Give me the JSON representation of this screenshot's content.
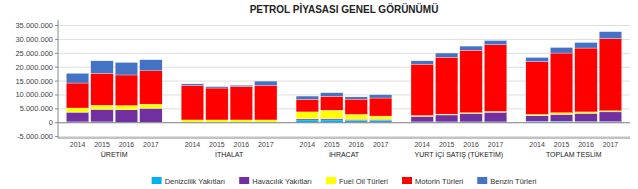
{
  "chart_data": {
    "type": "bar",
    "stacked": true,
    "grid": true,
    "legend": "bottom",
    "title": "PETROL PİYASASI GENEL GÖRÜNÜMÜ",
    "groups": [
      "ÜRETİM",
      "İTHALAT",
      "İHRACAT",
      "YURT İÇİ SATIŞ (TÜKETİM)",
      "TOPLAM TESLİM"
    ],
    "categories": [
      "2014",
      "2015",
      "2016",
      "2017",
      "2014",
      "2015",
      "2016",
      "2017",
      "2014",
      "2015",
      "2016",
      "2017",
      "2014",
      "2015",
      "2016",
      "2017",
      "2014",
      "2015",
      "2016",
      "2017"
    ],
    "series": [
      {
        "name": "Denizcilik Yakıtları",
        "color": "#00B0F0",
        "values": [
          300000,
          300000,
          200000,
          200000,
          200000,
          200000,
          200000,
          200000,
          1000000,
          1000000,
          800000,
          800000,
          300000,
          300000,
          300000,
          300000,
          500000,
          500000,
          400000,
          400000
        ]
      },
      {
        "name": "Havacılık Yakıtları",
        "color": "#7030A0",
        "values": [
          3500000,
          4500000,
          4500000,
          5000000,
          0,
          0,
          0,
          0,
          400000,
          500000,
          400000,
          400000,
          2000000,
          2500000,
          3000000,
          3500000,
          2000000,
          2500000,
          3000000,
          3500000
        ]
      },
      {
        "name": "Fuel Oil Türleri",
        "color": "#FFFF00",
        "values": [
          1500000,
          1500000,
          1500000,
          1500000,
          800000,
          800000,
          800000,
          800000,
          2500000,
          3000000,
          1800000,
          1200000,
          300000,
          300000,
          300000,
          300000,
          500000,
          600000,
          500000,
          400000
        ]
      },
      {
        "name": "Motorin Türleri",
        "color": "#FF0000",
        "values": [
          9000000,
          11500000,
          11000000,
          12000000,
          12500000,
          11500000,
          12000000,
          12500000,
          4500000,
          5000000,
          5500000,
          6500000,
          18500000,
          20500000,
          22500000,
          24000000,
          19000000,
          21500000,
          23000000,
          26000000
        ]
      },
      {
        "name": "Benzin Türleri",
        "color": "#4472C4",
        "values": [
          3500000,
          4500000,
          4500000,
          4000000,
          500000,
          500000,
          500000,
          1500000,
          1200000,
          1300000,
          800000,
          1200000,
          1200000,
          1500000,
          1500000,
          1500000,
          1500000,
          2000000,
          2000000,
          2500000
        ]
      }
    ],
    "ylim": [
      -5500000,
      37000000
    ],
    "yticks": [
      {
        "value": -5000000,
        "label": "-5.000.000"
      },
      0,
      {
        "value": 5000000,
        "label": "5.000.000"
      },
      {
        "value": 10000000,
        "label": "10.000.000"
      },
      {
        "value": 15000000,
        "label": "15.000.000"
      },
      {
        "value": 20000000,
        "label": "20.000.000"
      },
      {
        "value": 25000000,
        "label": "25.000.000"
      },
      {
        "value": 30000000,
        "label": "30.000.000"
      },
      {
        "value": 35000000,
        "label": "35.000.000"
      }
    ]
  }
}
